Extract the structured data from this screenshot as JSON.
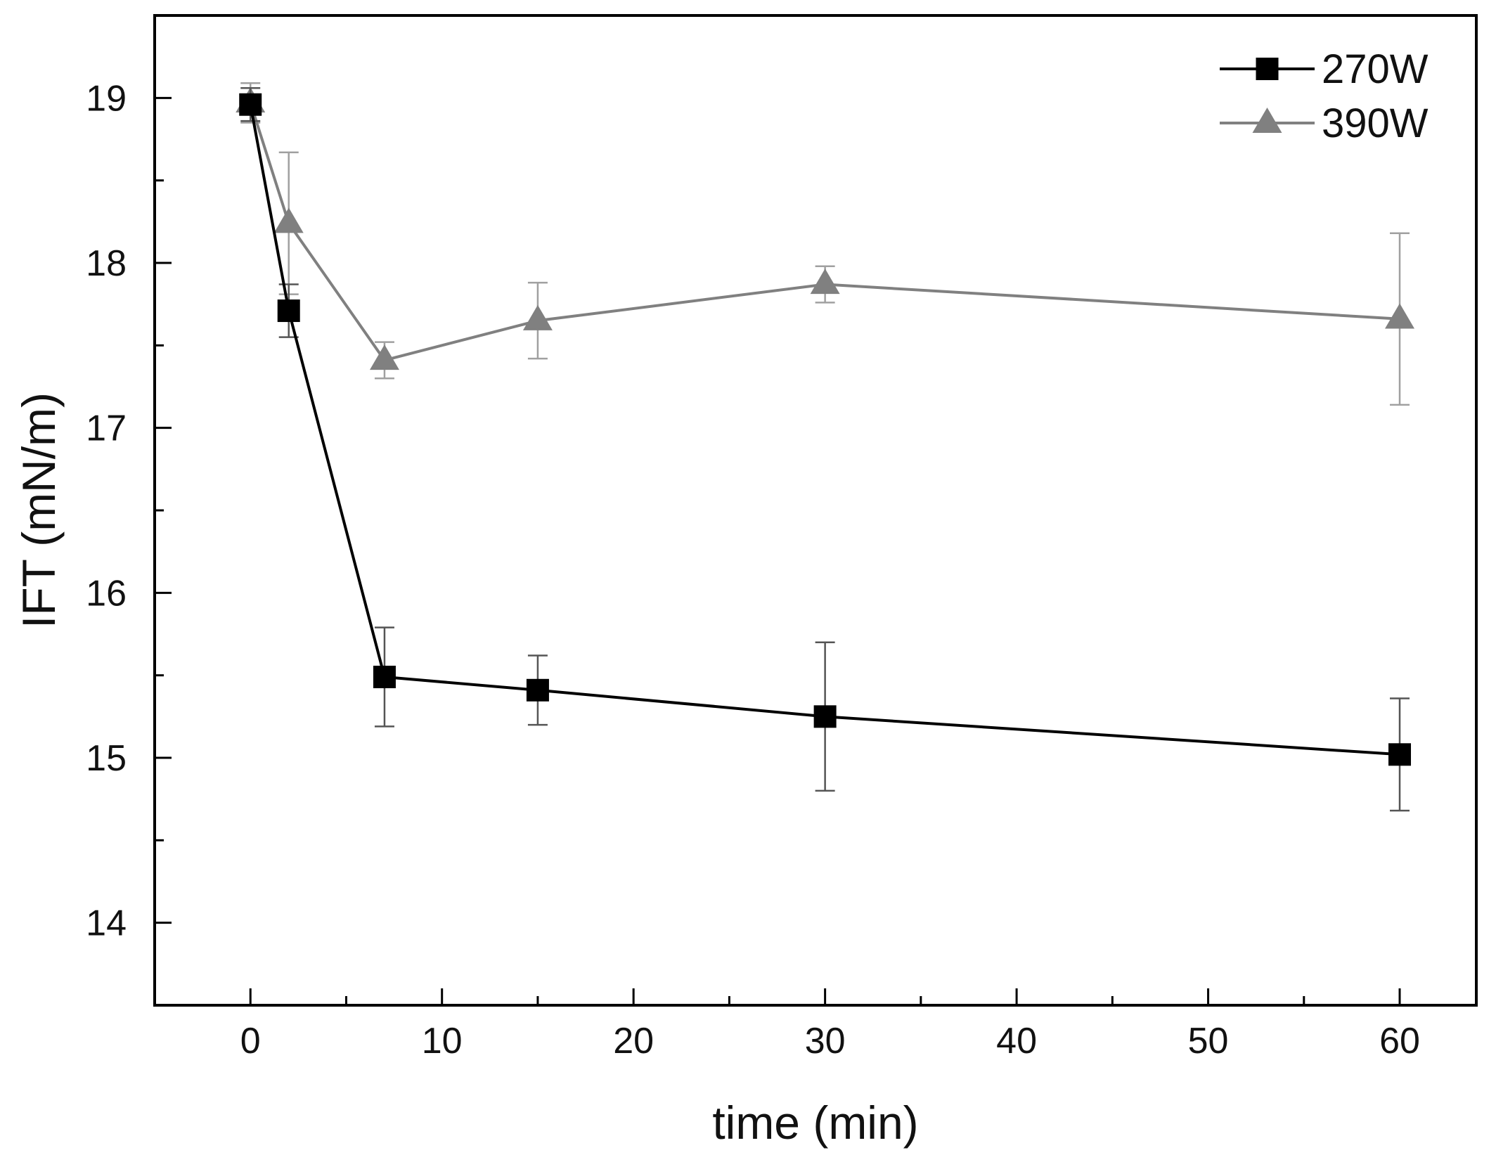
{
  "chart_data": {
    "type": "line",
    "title": "",
    "xlabel": "time (min)",
    "ylabel": "IFT (mN/m)",
    "xlim": [
      -5,
      64
    ],
    "ylim": [
      13.5,
      19.5
    ],
    "x_ticks": [
      0,
      10,
      20,
      30,
      40,
      50,
      60
    ],
    "x_tick_labels": [
      "0",
      "10",
      "20",
      "30",
      "40",
      "50",
      "60"
    ],
    "y_ticks": [
      14,
      15,
      16,
      17,
      18,
      19
    ],
    "y_tick_labels": [
      "14",
      "15",
      "16",
      "17",
      "18",
      "19"
    ],
    "legend_position": "top-right",
    "series": [
      {
        "name": "270W",
        "marker": "square",
        "color": "#000000",
        "x": [
          0,
          2,
          7,
          15,
          30,
          60
        ],
        "y": [
          18.96,
          17.71,
          15.49,
          15.41,
          15.25,
          15.02
        ],
        "error": [
          0.1,
          0.16,
          0.3,
          0.21,
          0.45,
          0.34
        ]
      },
      {
        "name": "390W",
        "marker": "triangle",
        "color": "#808080",
        "x": [
          0,
          2,
          7,
          15,
          30,
          60
        ],
        "y": [
          18.97,
          18.24,
          17.41,
          17.65,
          17.87,
          17.66
        ],
        "error": [
          0.12,
          0.43,
          0.11,
          0.23,
          0.11,
          0.52
        ]
      }
    ]
  }
}
